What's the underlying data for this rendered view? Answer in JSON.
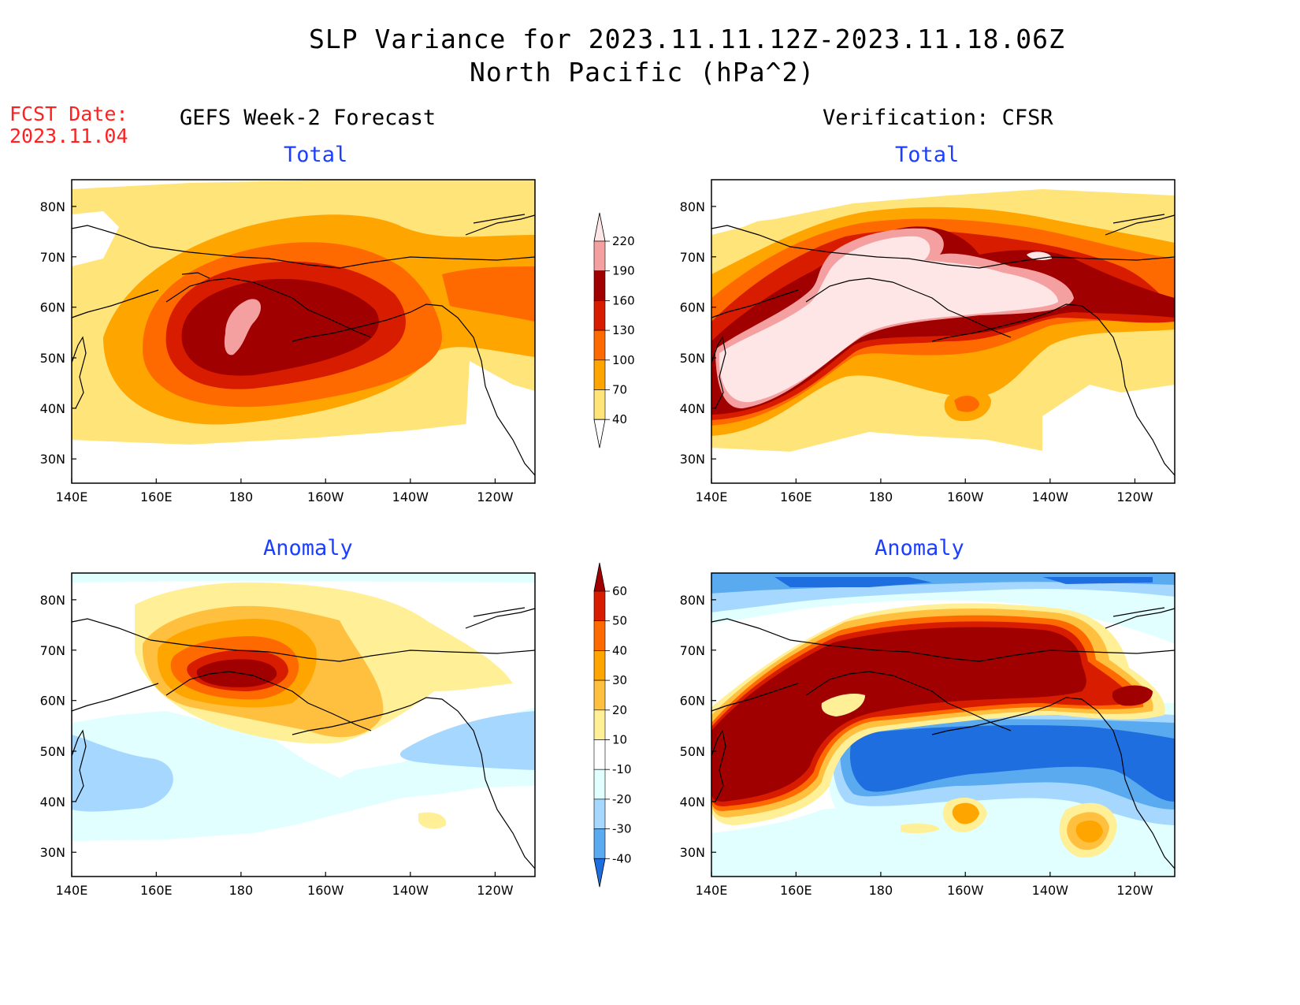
{
  "header": {
    "title_line1": "SLP Variance for 2023.11.11.12Z-2023.11.18.06Z",
    "title_line2": "North Pacific (hPa^2)"
  },
  "forecast_date": {
    "label": "FCST Date:",
    "value": "2023.11.04"
  },
  "columns": {
    "left": "GEFS Week-2 Forecast",
    "right": "Verification: CFSR"
  },
  "panels": {
    "forecast_total": {
      "title": "Total"
    },
    "verif_total": {
      "title": "Total"
    },
    "forecast_anomaly": {
      "title": "Anomaly"
    },
    "verif_anomaly": {
      "title": "Anomaly"
    }
  },
  "axes": {
    "x_ticks": [
      "140E",
      "160E",
      "180",
      "160W",
      "140W",
      "120W"
    ],
    "y_ticks": [
      "80N",
      "70N",
      "60N",
      "50N",
      "40N",
      "30N"
    ]
  },
  "colorbars": {
    "total": {
      "levels": [
        "220",
        "190",
        "160",
        "130",
        "100",
        "70",
        "40"
      ],
      "colors": [
        "#ffe6e6",
        "#f4a0a0",
        "#a00000",
        "#d81c00",
        "#ff6a00",
        "#ffa500",
        "#ffe47a",
        "#ffffff"
      ]
    },
    "anomaly": {
      "levels": [
        "60",
        "50",
        "40",
        "30",
        "20",
        "10",
        "-10",
        "-20",
        "-30",
        "-40"
      ],
      "colors": [
        "#a00000",
        "#d81c00",
        "#ff6a00",
        "#ffa500",
        "#ffc040",
        "#fff098",
        "#ffffff",
        "#e1ffff",
        "#a6d8ff",
        "#5aaaf0",
        "#1e6ee0"
      ]
    }
  }
}
